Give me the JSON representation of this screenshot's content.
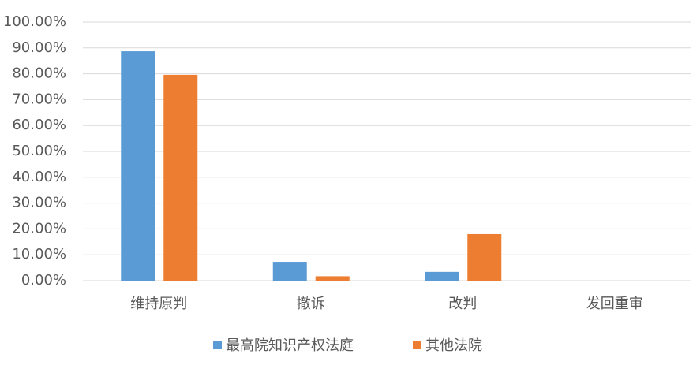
{
  "chart_data": {
    "type": "bar",
    "categories": [
      "维持原判",
      "撤诉",
      "改判",
      "发回重审"
    ],
    "series": [
      {
        "name": "最高院知识产权法庭",
        "color": "#5b9bd5",
        "values": [
          88.7,
          7.3,
          3.4,
          0
        ]
      },
      {
        "name": "其他法院",
        "color": "#ed7d31",
        "values": [
          79.6,
          1.7,
          18.0,
          0
        ]
      }
    ],
    "ylim": [
      0,
      100
    ],
    "yticks": [
      {
        "value": 0,
        "label": "0.00%"
      },
      {
        "value": 10,
        "label": "10.00%"
      },
      {
        "value": 20,
        "label": "20.00%"
      },
      {
        "value": 30,
        "label": "30.00%"
      },
      {
        "value": 40,
        "label": "40.00%"
      },
      {
        "value": 50,
        "label": "50.00%"
      },
      {
        "value": 60,
        "label": "60.00%"
      },
      {
        "value": 70,
        "label": "70.00%"
      },
      {
        "value": 80,
        "label": "80.00%"
      },
      {
        "value": 90,
        "label": "90.00%"
      },
      {
        "value": 100,
        "label": "100.00%"
      }
    ],
    "grid": true,
    "legend": "bottom"
  }
}
